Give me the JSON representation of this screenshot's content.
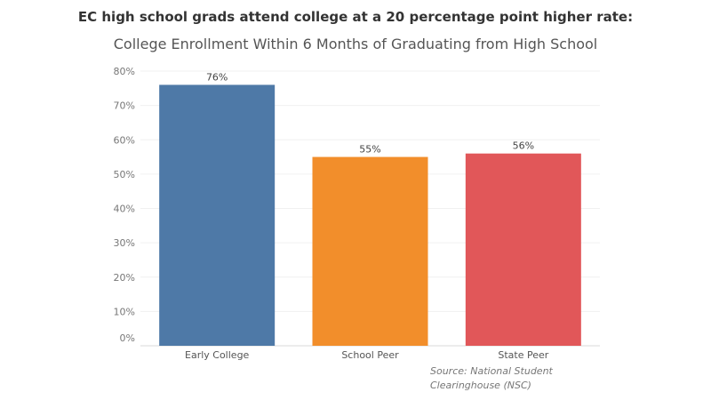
{
  "chart_data": {
    "type": "bar",
    "headline": "EC high school grads attend college at a  20  percentage point higher rate:",
    "title": "College Enrollment Within 6 Months of Graduating from High School",
    "categories": [
      "Early College",
      "School Peer",
      "State Peer"
    ],
    "values": [
      76,
      55,
      56
    ],
    "data_labels": [
      "76%",
      "55%",
      "56%"
    ],
    "colors": [
      "#4e79a7",
      "#f28e2b",
      "#e15759"
    ],
    "ylim": [
      0,
      80
    ],
    "yticks": [
      0,
      10,
      20,
      30,
      40,
      50,
      60,
      70,
      80
    ],
    "ytick_labels": [
      "0%",
      "10%",
      "20%",
      "30%",
      "40%",
      "50%",
      "60%",
      "70%",
      "80%"
    ],
    "grid": true,
    "source": "Source: National Student Clearinghouse (NSC)"
  }
}
